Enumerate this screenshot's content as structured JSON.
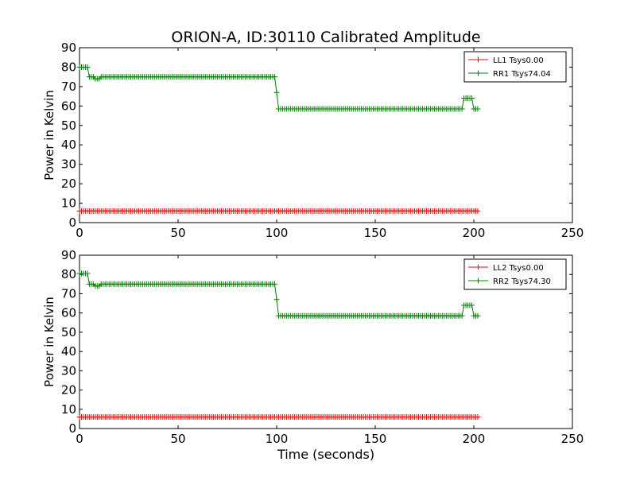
{
  "title": "ORION-A, ID:30110 Calibrated Amplitude",
  "xlabel": "Time (seconds)",
  "chart_data": [
    {
      "type": "line",
      "xlabel": "",
      "ylabel": "Power in Kelvin",
      "xlim": [
        0,
        250
      ],
      "ylim": [
        0,
        90
      ],
      "xticks": [
        0,
        50,
        100,
        150,
        200,
        250
      ],
      "yticks": [
        0,
        10,
        20,
        30,
        40,
        50,
        60,
        70,
        80,
        90
      ],
      "grid": false,
      "legend_position": "top-right",
      "marker": "+",
      "series": [
        {
          "name": "LL1 Tsys0.00",
          "color": "#ff0000",
          "segments": [
            {
              "x_start": 0,
              "x_end": 202,
              "value": 6
            }
          ]
        },
        {
          "name": "RR1 Tsys74.04",
          "color": "#008000",
          "segments": [
            {
              "x_start": 0,
              "x_end": 4,
              "value": 80
            },
            {
              "x_start": 5,
              "x_end": 7,
              "value": 75
            },
            {
              "x_start": 8,
              "x_end": 10,
              "value": 74
            },
            {
              "x_start": 11,
              "x_end": 99,
              "value": 75
            },
            {
              "x_start": 100,
              "x_end": 100,
              "value": 67
            },
            {
              "x_start": 101,
              "x_end": 194,
              "value": 58.5
            },
            {
              "x_start": 195,
              "x_end": 199,
              "value": 64
            },
            {
              "x_start": 200,
              "x_end": 202,
              "value": 58.5
            }
          ]
        }
      ]
    },
    {
      "type": "line",
      "xlabel": "Time (seconds)",
      "ylabel": "Power in Kelvin",
      "xlim": [
        0,
        250
      ],
      "ylim": [
        0,
        90
      ],
      "xticks": [
        0,
        50,
        100,
        150,
        200,
        250
      ],
      "yticks": [
        0,
        10,
        20,
        30,
        40,
        50,
        60,
        70,
        80,
        90
      ],
      "grid": false,
      "legend_position": "top-right",
      "marker": "+",
      "series": [
        {
          "name": "LL2 Tsys0.00",
          "color": "#ff0000",
          "segments": [
            {
              "x_start": 0,
              "x_end": 202,
              "value": 6
            }
          ]
        },
        {
          "name": "RR2 Tsys74.30",
          "color": "#008000",
          "segments": [
            {
              "x_start": 0,
              "x_end": 4,
              "value": 80.5
            },
            {
              "x_start": 5,
              "x_end": 7,
              "value": 75
            },
            {
              "x_start": 8,
              "x_end": 10,
              "value": 74
            },
            {
              "x_start": 11,
              "x_end": 99,
              "value": 75
            },
            {
              "x_start": 100,
              "x_end": 100,
              "value": 67
            },
            {
              "x_start": 101,
              "x_end": 194,
              "value": 58.5
            },
            {
              "x_start": 195,
              "x_end": 199,
              "value": 64
            },
            {
              "x_start": 200,
              "x_end": 202,
              "value": 58.5
            }
          ]
        }
      ]
    }
  ]
}
